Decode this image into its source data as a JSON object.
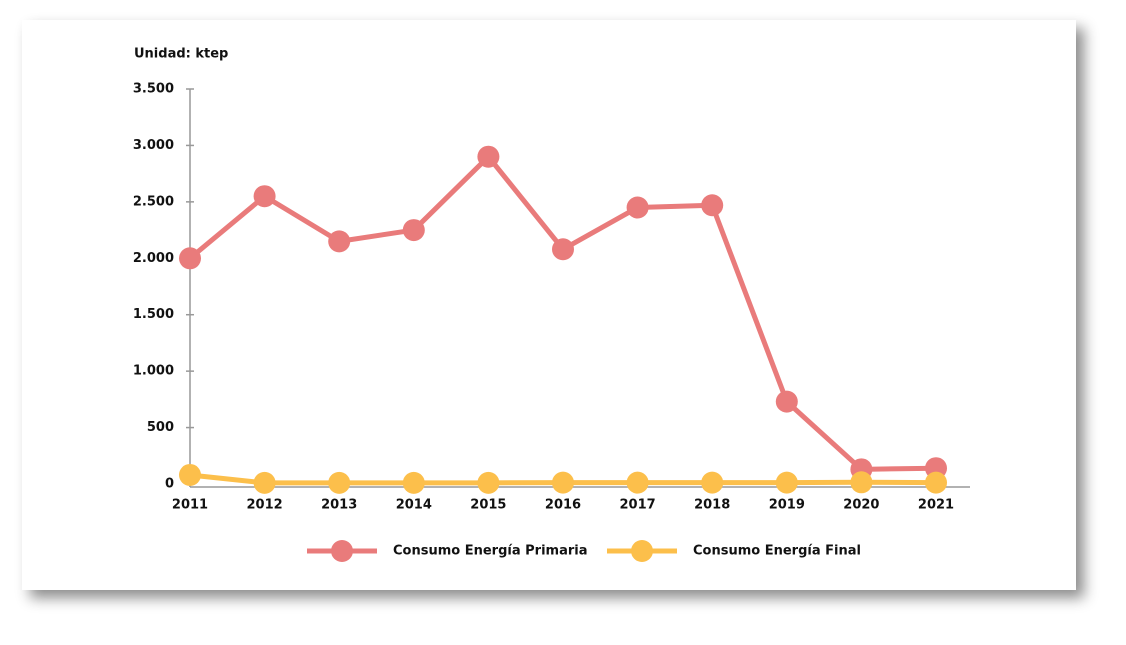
{
  "chart_data": {
    "type": "line",
    "y_label": "Unidad: ktep",
    "categories": [
      "2011",
      "2012",
      "2013",
      "2014",
      "2015",
      "2016",
      "2017",
      "2018",
      "2019",
      "2020",
      "2021"
    ],
    "series": [
      {
        "name": "Consumo Energía Primaria",
        "color": "#e97b7b",
        "values": [
          2000,
          2550,
          2150,
          2250,
          2900,
          2080,
          2450,
          2470,
          730,
          130,
          140
        ]
      },
      {
        "name": "Consumo Energía Final",
        "color": "#fcbf4b",
        "values": [
          80,
          10,
          10,
          10,
          10,
          12,
          12,
          12,
          12,
          15,
          12
        ]
      }
    ],
    "ylim": [
      0,
      3500
    ],
    "yticks": [
      0,
      500,
      {
        "value": 1000,
        "label": "1.000"
      },
      {
        "value": 1500,
        "label": "1.500"
      },
      {
        "value": 2000,
        "label": "2.000"
      },
      {
        "value": 2500,
        "label": "2.500"
      },
      {
        "value": 3000,
        "label": "3.000"
      },
      {
        "value": 3500,
        "label": "3.500"
      }
    ],
    "legend": "bottom"
  }
}
